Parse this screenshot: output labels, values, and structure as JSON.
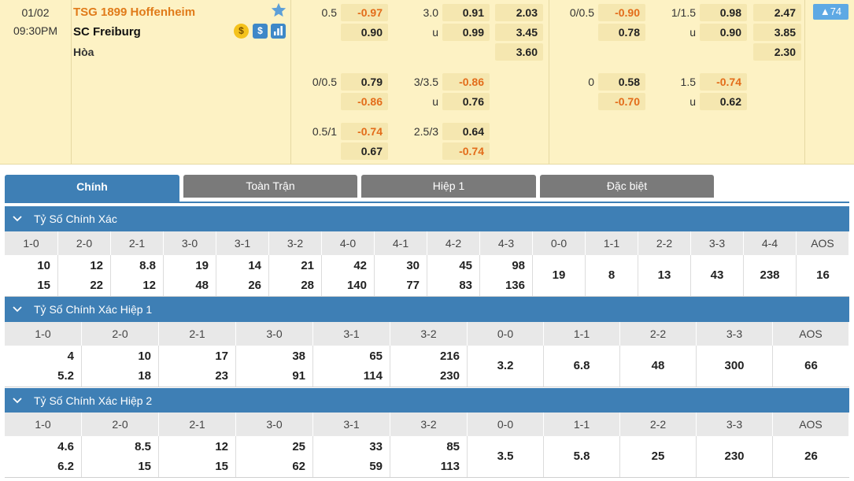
{
  "match": {
    "date": "01/02",
    "time": "09:30PM",
    "home_team": "TSG 1899 Hoffenheim",
    "away_team": "SC Freiburg",
    "draw_label": "Hòa",
    "more_count": "▲74",
    "icons": {
      "favorite": "star-icon",
      "coin": "coin-icon",
      "dollar": "dollar-icon",
      "chart": "chart-icon"
    },
    "ft_handicap": [
      {
        "line": "0.5",
        "home": "-0.97",
        "away": "0.90"
      },
      {
        "line": "0/0.5",
        "home": "0.79",
        "away": "-0.86"
      },
      {
        "line": "0.5/1",
        "home": "-0.74",
        "away": "0.67"
      }
    ],
    "ft_total": [
      {
        "line": "3.0",
        "over": "0.91",
        "under_label": "u",
        "under": "0.99"
      },
      {
        "line": "3/3.5",
        "over": "-0.86",
        "under_label": "u",
        "under": "0.76"
      },
      {
        "line": "2.5/3",
        "over": "0.64",
        "under_label": "",
        "under": "-0.74"
      }
    ],
    "ft_1x2": {
      "home": "2.03",
      "away": "3.45",
      "draw": "3.60"
    },
    "h1_handicap": [
      {
        "line": "0/0.5",
        "home": "-0.90",
        "away": "0.78"
      },
      {
        "line": "0",
        "home": "0.58",
        "away": "-0.70"
      }
    ],
    "h1_total": [
      {
        "line": "1/1.5",
        "over": "0.98",
        "under_label": "u",
        "under": "0.90"
      },
      {
        "line": "1.5",
        "over": "-0.74",
        "under_label": "u",
        "under": "0.62"
      }
    ],
    "h1_1x2": {
      "home": "2.47",
      "away": "3.85",
      "draw": "2.30"
    }
  },
  "tabs": [
    "Chính",
    "Toàn Trận",
    "Hiệp 1",
    "Đặc biệt"
  ],
  "sections": {
    "correct_score": {
      "title": "Tỷ Số Chính Xác",
      "scores": [
        "1-0",
        "2-0",
        "2-1",
        "3-0",
        "3-1",
        "3-2",
        "4-0",
        "4-1",
        "4-2",
        "4-3",
        "0-0",
        "1-1",
        "2-2",
        "3-3",
        "4-4",
        "AOS"
      ],
      "home": [
        "10",
        "12",
        "8.8",
        "19",
        "14",
        "21",
        "42",
        "30",
        "45",
        "98"
      ],
      "away": [
        "15",
        "22",
        "12",
        "48",
        "26",
        "28",
        "140",
        "77",
        "83",
        "136"
      ],
      "draws": [
        "19",
        "8",
        "13",
        "43",
        "238",
        "16"
      ]
    },
    "correct_score_h1": {
      "title": "Tỷ Số Chính Xác Hiệp 1",
      "scores": [
        "1-0",
        "2-0",
        "2-1",
        "3-0",
        "3-1",
        "3-2",
        "0-0",
        "1-1",
        "2-2",
        "3-3",
        "AOS"
      ],
      "home": [
        "4",
        "10",
        "17",
        "38",
        "65",
        "216"
      ],
      "away": [
        "5.2",
        "18",
        "23",
        "91",
        "114",
        "230"
      ],
      "draws": [
        "3.2",
        "6.8",
        "48",
        "300",
        "66"
      ]
    },
    "correct_score_h2": {
      "title": "Tỷ Số Chính Xác Hiệp 2",
      "scores": [
        "1-0",
        "2-0",
        "2-1",
        "3-0",
        "3-1",
        "3-2",
        "0-0",
        "1-1",
        "2-2",
        "3-3",
        "AOS"
      ],
      "home": [
        "4.6",
        "8.5",
        "12",
        "25",
        "33",
        "85"
      ],
      "away": [
        "6.2",
        "15",
        "15",
        "62",
        "59",
        "113"
      ],
      "draws": [
        "3.5",
        "5.8",
        "25",
        "230",
        "26"
      ]
    }
  }
}
